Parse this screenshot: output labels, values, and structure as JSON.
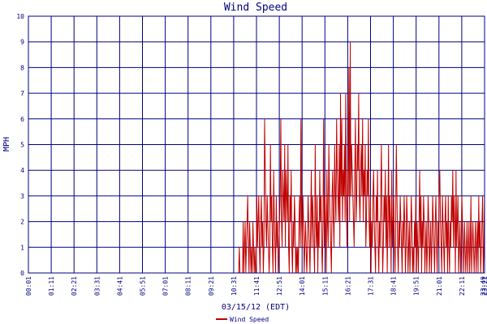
{
  "chart_data": {
    "type": "line",
    "title": "Wind Speed",
    "xlabel": "03/15/12 (EDT)",
    "ylabel": "MPH",
    "ylim": [
      0,
      10
    ],
    "y_ticks": [
      "0",
      "1",
      "2",
      "3",
      "4",
      "5",
      "6",
      "7",
      "8",
      "9",
      "10"
    ],
    "x_ticks": [
      "00:01",
      "01:11",
      "02:21",
      "03:31",
      "04:41",
      "05:51",
      "07:01",
      "08:11",
      "09:21",
      "10:31",
      "11:41",
      "12:51",
      "14:01",
      "15:11",
      "16:21",
      "17:31",
      "18:41",
      "19:51",
      "21:01",
      "22:11",
      "23:21",
      "23:49"
    ],
    "grid": true,
    "legend_position": "bottom-center",
    "series": [
      {
        "name": "Wind Speed",
        "color": "#c00000",
        "x_range": [
          "00:01",
          "23:49"
        ],
        "values": [
          0,
          0,
          0,
          0,
          0,
          0,
          0,
          0,
          0,
          0,
          0,
          0,
          0,
          0,
          0,
          0,
          0,
          0,
          0,
          0,
          0,
          0,
          0,
          0,
          0,
          0,
          0,
          0,
          0,
          0,
          0,
          0,
          0,
          0,
          0,
          0,
          0,
          0,
          0,
          0,
          0,
          0,
          0,
          0,
          0,
          0,
          0,
          0,
          0,
          0,
          0,
          0,
          0,
          0,
          0,
          0,
          0,
          0,
          0,
          0,
          0,
          0,
          0,
          0,
          0,
          0,
          0,
          0,
          0,
          0,
          0,
          0,
          0,
          0,
          0,
          0,
          0,
          0,
          0,
          0,
          0,
          0,
          0,
          0,
          0,
          0,
          0,
          0,
          0,
          0,
          0,
          0,
          0,
          0,
          0,
          0,
          0,
          0,
          0,
          0,
          0,
          0,
          0,
          0,
          0,
          0,
          0,
          0,
          0,
          0,
          0,
          0,
          0,
          0,
          0,
          0,
          0,
          0,
          0,
          0,
          0,
          0,
          0,
          0,
          0,
          0,
          0,
          0,
          0,
          0,
          0,
          0,
          0,
          0,
          0,
          0,
          0,
          0,
          0,
          0,
          0,
          0,
          0,
          0,
          0,
          0,
          0,
          0,
          0,
          0,
          0,
          0,
          0,
          0,
          0,
          0,
          0,
          0,
          0,
          0,
          0,
          0,
          0,
          0,
          0,
          0,
          0,
          0,
          0,
          0,
          0,
          0,
          0,
          0,
          0,
          0,
          0,
          0,
          0,
          0,
          0,
          0,
          0,
          0,
          0,
          0,
          0,
          0,
          0,
          0,
          0,
          0,
          0,
          0,
          0,
          0,
          0,
          0,
          0,
          0,
          0,
          0,
          0,
          0,
          0,
          0,
          0,
          0,
          0,
          0,
          0,
          0,
          0,
          0,
          0,
          0,
          0,
          0,
          0,
          0,
          0,
          0,
          0,
          0,
          0,
          0,
          0,
          0,
          0,
          0,
          0,
          0,
          0,
          0,
          0,
          0,
          0,
          0,
          0,
          0,
          0,
          0,
          0,
          0,
          0,
          0,
          0,
          0,
          0,
          0,
          0,
          0,
          0,
          0,
          0,
          0,
          0,
          0,
          0,
          0,
          0,
          0,
          0,
          0,
          0,
          0,
          0,
          0,
          0,
          0,
          0,
          0,
          0,
          0,
          0,
          0,
          0,
          0,
          0,
          0,
          0,
          0,
          0,
          0,
          0,
          0,
          0,
          0,
          0,
          0,
          0,
          0,
          0,
          0,
          0,
          0,
          0,
          0,
          0,
          0,
          0,
          0,
          0,
          0,
          0,
          0,
          0,
          0,
          0,
          0,
          0,
          0,
          0,
          0,
          0,
          0,
          0,
          0,
          0,
          0,
          0,
          0,
          0,
          0,
          0,
          1,
          0,
          0,
          0,
          0,
          0,
          2,
          0,
          1,
          2,
          0,
          1,
          2,
          3,
          1,
          0,
          2,
          1,
          0,
          1,
          0,
          2,
          1,
          0,
          1,
          0,
          0,
          3,
          1,
          2,
          3,
          1,
          0,
          2,
          3,
          1,
          2,
          0,
          1,
          6,
          4,
          2,
          1,
          3,
          2,
          1,
          0,
          1,
          5,
          2,
          3,
          1,
          0,
          4,
          2,
          1,
          0,
          3,
          1,
          2,
          0,
          1,
          2,
          3,
          6,
          2,
          1,
          4,
          3,
          2,
          5,
          1,
          4,
          3,
          2,
          5,
          1,
          0,
          3,
          2,
          4,
          1,
          0,
          2,
          1,
          3,
          2,
          0,
          1,
          0,
          1,
          0,
          2,
          3,
          1,
          6,
          2,
          1,
          3,
          2,
          0,
          1,
          2,
          1,
          0,
          1,
          3,
          2,
          1,
          0,
          2,
          4,
          1,
          3,
          2,
          1,
          0,
          5,
          2,
          1,
          3,
          0,
          2,
          1,
          4,
          2,
          3,
          1,
          0,
          2,
          6,
          1,
          3,
          2,
          0,
          4,
          2,
          1,
          5,
          3,
          2,
          1,
          0,
          3,
          4,
          2,
          1,
          5,
          3,
          2,
          6,
          4,
          3,
          2,
          5,
          1,
          7,
          3,
          6,
          2,
          4,
          3,
          5,
          2,
          7,
          3,
          1,
          4,
          3,
          8,
          2,
          9,
          3,
          5,
          4,
          3,
          2,
          1,
          4,
          6,
          2,
          3,
          5,
          4,
          7,
          3,
          2,
          4,
          5,
          3,
          6,
          2,
          4,
          3,
          5,
          1,
          2,
          4,
          3,
          6,
          2,
          1,
          3,
          0,
          2,
          1,
          3,
          4,
          2,
          1,
          0,
          3,
          2,
          4,
          1,
          0,
          2,
          1,
          3,
          5,
          2,
          0,
          1,
          3,
          2,
          4,
          1,
          3,
          0,
          2,
          5,
          1,
          3,
          2,
          0,
          4,
          1,
          2,
          3,
          1,
          0,
          2,
          5,
          3,
          1,
          0,
          2,
          1,
          3,
          2,
          1,
          0,
          2,
          1,
          3,
          2,
          0,
          1,
          3,
          2,
          0,
          1,
          2,
          0,
          1,
          3,
          2,
          0,
          1,
          0,
          2,
          1,
          3,
          0,
          2,
          1,
          0,
          2,
          4,
          1,
          3,
          0,
          2,
          1,
          3,
          2,
          0,
          1,
          2,
          0,
          1,
          3,
          2,
          0,
          1,
          2,
          0,
          1,
          3,
          2,
          1,
          0,
          2,
          3,
          1,
          0,
          2,
          1,
          3,
          4,
          2,
          1,
          0,
          3,
          2,
          1,
          0,
          2,
          3,
          1,
          2,
          0,
          3,
          1,
          0,
          2,
          1,
          3,
          2,
          4,
          1,
          3,
          2,
          0,
          4,
          1,
          2,
          3,
          0,
          1,
          2,
          0,
          1,
          3,
          2,
          1,
          0,
          2,
          1,
          0,
          1,
          2,
          0,
          1,
          2,
          0,
          1,
          3,
          0,
          1,
          2,
          1,
          0,
          1,
          2,
          0,
          1,
          2,
          0,
          3,
          1,
          2,
          0,
          1,
          2,
          3,
          0,
          1,
          3
        ]
      }
    ]
  }
}
